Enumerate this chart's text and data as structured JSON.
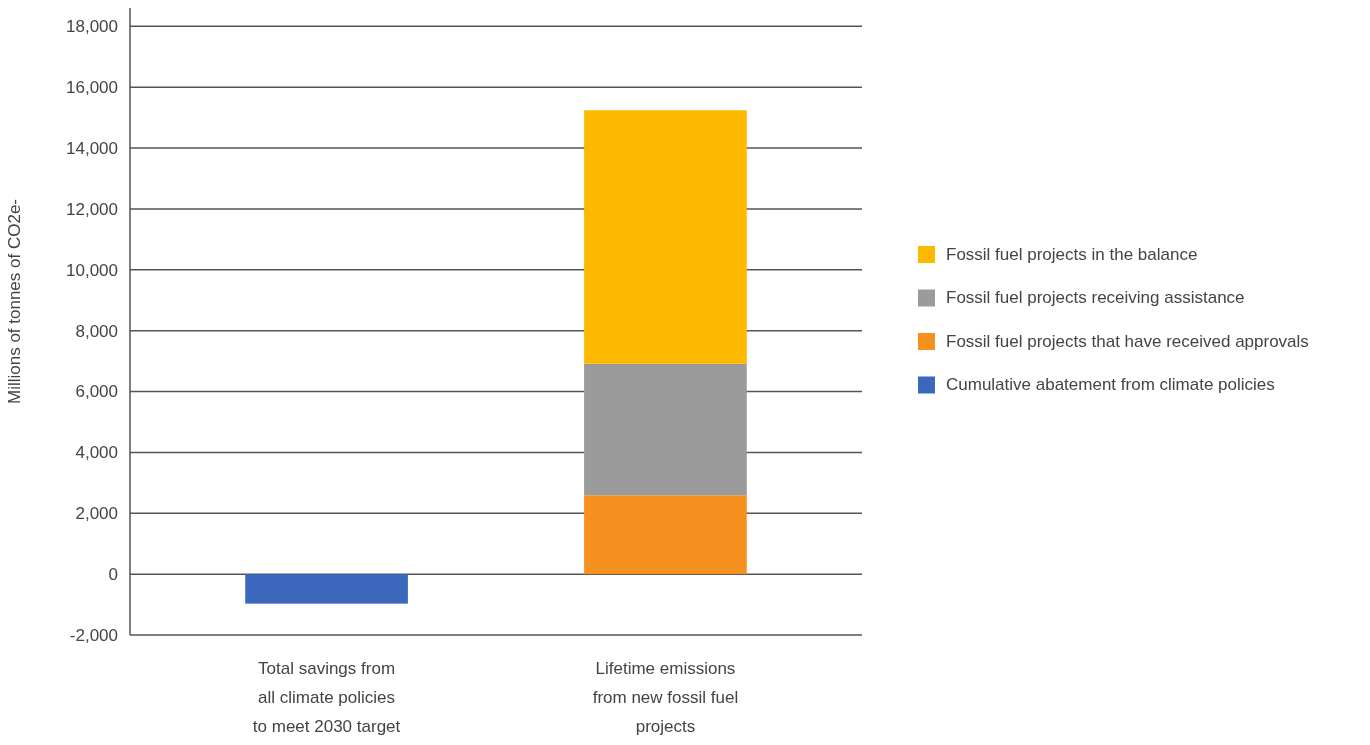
{
  "chart_data": {
    "type": "bar",
    "stacked": true,
    "ylabel": "Millions of tonnes of CO2e-",
    "categories": [
      "Total savings from all climate policies to meet 2030 target",
      "Lifetime emissions from new fossil fuel projects"
    ],
    "series": [
      {
        "name": "Cumulative abatement from climate policies",
        "color": "#3b67bc",
        "values": [
          -970,
          null
        ]
      },
      {
        "name": "Fossil fuel projects that have received approvals",
        "color": "#f69120",
        "values": [
          null,
          2590
        ]
      },
      {
        "name": "Fossil fuel projects receiving assistance",
        "color": "#9b9b9b",
        "values": [
          null,
          4320
        ]
      },
      {
        "name": "Fossil fuel projects in the balance",
        "color": "#fdb800",
        "values": [
          null,
          8330
        ]
      }
    ],
    "ylim": [
      -2000,
      18600
    ],
    "yticks": [
      {
        "value": -2000,
        "label": "-2,000"
      },
      0,
      {
        "value": 2000,
        "label": "2,000"
      },
      {
        "value": 4000,
        "label": "4,000"
      },
      {
        "value": 6000,
        "label": "6,000"
      },
      {
        "value": 8000,
        "label": "8,000"
      },
      {
        "value": 10000,
        "label": "10,000"
      },
      {
        "value": 12000,
        "label": "12,000"
      },
      {
        "value": 14000,
        "label": "14,000"
      },
      {
        "value": 16000,
        "label": "16,000"
      },
      {
        "value": 18000,
        "label": "18,000"
      }
    ],
    "grid": "y",
    "legend": "right"
  }
}
